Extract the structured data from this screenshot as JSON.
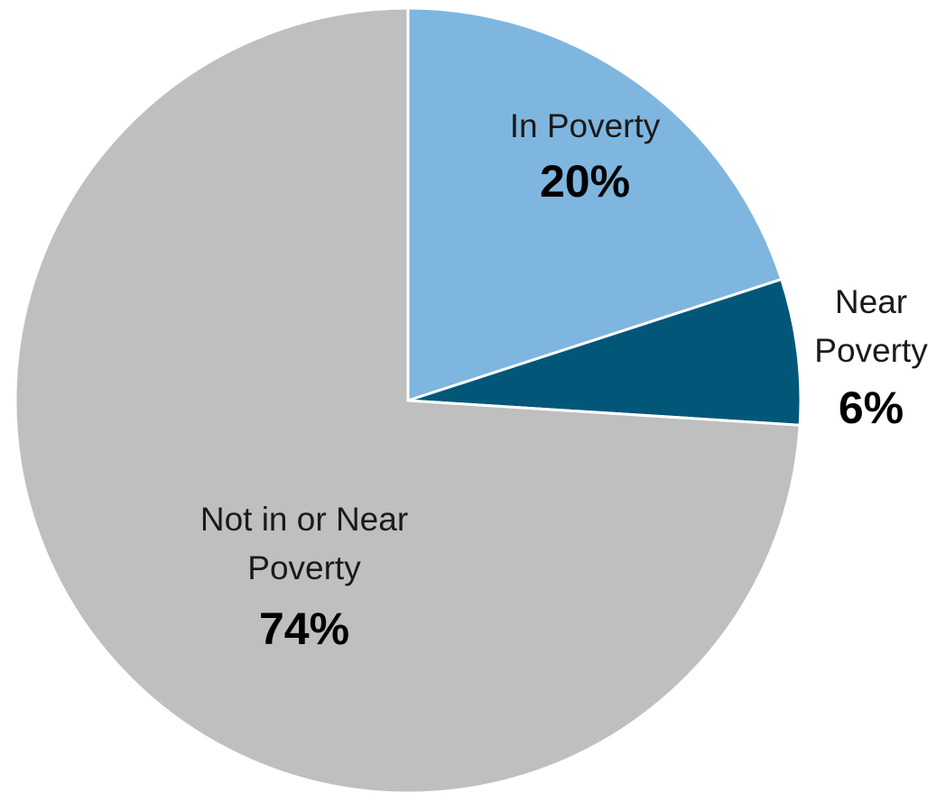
{
  "chart_data": {
    "type": "pie",
    "title": "",
    "slices": [
      {
        "name": "In Poverty",
        "name_lines": [
          "In Poverty"
        ],
        "value": 20,
        "label": "20%",
        "color": "#7EB6DF"
      },
      {
        "name": "Near Poverty",
        "name_lines": [
          "Near",
          "Poverty"
        ],
        "value": 6,
        "label": "6%",
        "color": "#025779"
      },
      {
        "name": "Not in or Near Poverty",
        "name_lines": [
          "Not in or Near",
          "Poverty"
        ],
        "value": 74,
        "label": "74%",
        "color": "#BFBFBF"
      }
    ],
    "start_angle": "12 o'clock",
    "direction": "clockwise",
    "legend": "none",
    "data_labels": "category name and percentage"
  }
}
